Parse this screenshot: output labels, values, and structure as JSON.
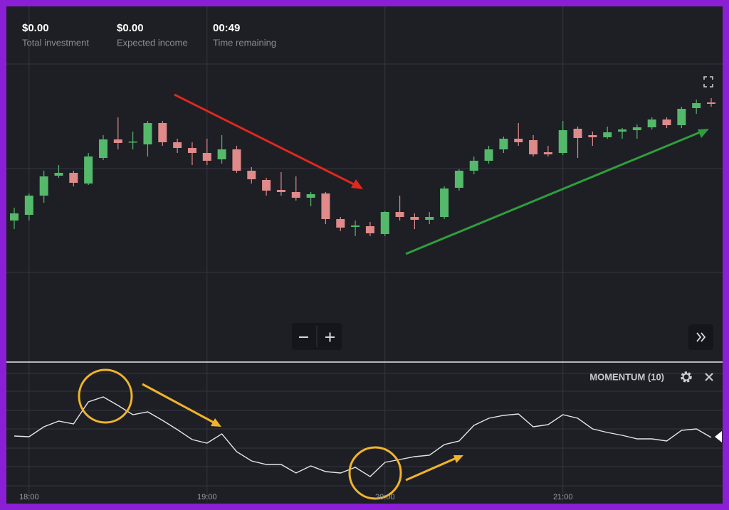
{
  "header": {
    "stats": [
      {
        "value": "$0.00",
        "label": "Total investment"
      },
      {
        "value": "$0.00",
        "label": "Expected income"
      },
      {
        "value": "00:49",
        "label": "Time remaining"
      }
    ]
  },
  "chart_data": [
    {
      "type": "candlestick",
      "categories": [
        null,
        "18:00",
        null,
        null,
        null,
        null,
        null,
        null,
        null,
        null,
        null,
        null,
        null,
        "19:00",
        null,
        null,
        null,
        null,
        null,
        null,
        null,
        null,
        null,
        null,
        null,
        "20:00",
        null,
        null,
        null,
        null,
        null,
        null,
        null,
        null,
        null,
        null,
        null,
        "21:00",
        null,
        null,
        null,
        null,
        null,
        null,
        null,
        null,
        null,
        null
      ],
      "open": [
        195,
        203,
        230,
        258,
        262,
        247,
        283,
        309,
        305,
        302,
        332,
        305,
        297,
        290,
        281,
        295,
        265,
        252,
        238,
        235,
        227,
        233,
        197,
        186,
        187,
        176,
        207,
        200,
        196,
        200,
        241,
        265,
        279,
        295,
        310,
        308,
        291,
        290,
        324,
        315,
        312,
        320,
        322,
        326,
        337,
        329,
        353,
        361
      ],
      "high": [
        213,
        233,
        265,
        273,
        265,
        290,
        315,
        340,
        320,
        335,
        335,
        310,
        305,
        310,
        315,
        300,
        270,
        255,
        263,
        257,
        235,
        235,
        200,
        195,
        193,
        208,
        230,
        205,
        207,
        243,
        267,
        285,
        300,
        313,
        332,
        315,
        300,
        335,
        327,
        320,
        327,
        325,
        330,
        340,
        340,
        355,
        365,
        367
      ],
      "low": [
        183,
        195,
        220,
        255,
        243,
        245,
        280,
        295,
        295,
        285,
        300,
        290,
        273,
        273,
        275,
        262,
        247,
        230,
        230,
        223,
        215,
        190,
        180,
        173,
        173,
        173,
        195,
        183,
        190,
        197,
        237,
        260,
        275,
        290,
        300,
        285,
        285,
        287,
        283,
        300,
        310,
        310,
        310,
        323,
        325,
        325,
        345,
        355
      ],
      "close": [
        205,
        230,
        257,
        262,
        248,
        285,
        309,
        304,
        306,
        332,
        305,
        297,
        290,
        279,
        295,
        265,
        253,
        237,
        235,
        227,
        232,
        197,
        185,
        188,
        177,
        207,
        200,
        196,
        200,
        240,
        265,
        279,
        295,
        310,
        305,
        288,
        288,
        322,
        311,
        312,
        319,
        323,
        326,
        337,
        329,
        352,
        360,
        359
      ],
      "ylim": [
        0,
        415
      ],
      "up_color": "#55b96b",
      "down_color": "#e08a8a"
    },
    {
      "type": "line",
      "title": "MOMENTUM (10)",
      "values": [
        92,
        91,
        105,
        113,
        109,
        140,
        147,
        135,
        122,
        126,
        114,
        101,
        87,
        82,
        95,
        70,
        57,
        52,
        52,
        40,
        50,
        42,
        40,
        48,
        35,
        55,
        59,
        63,
        65,
        80,
        85,
        107,
        117,
        121,
        123,
        105,
        108,
        122,
        117,
        102,
        97,
        93,
        88,
        88,
        85,
        100,
        102,
        90
      ],
      "ylim": [
        0,
        195
      ],
      "color": "#e6e6e6"
    }
  ]
}
